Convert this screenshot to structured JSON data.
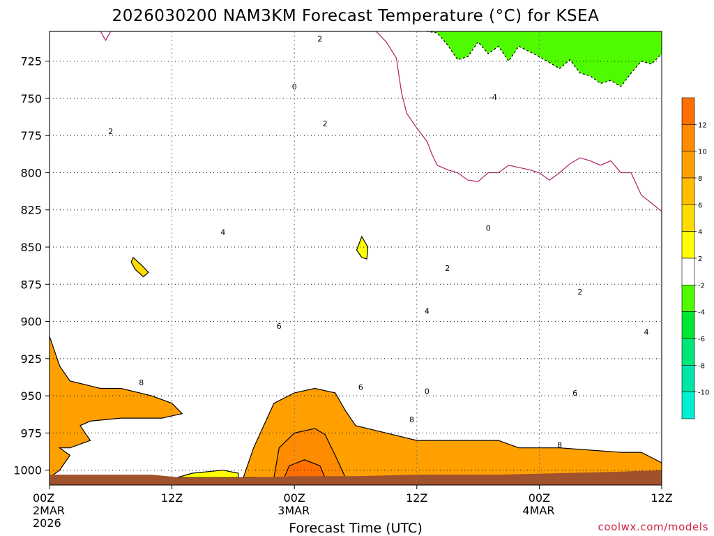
{
  "chart_data": {
    "type": "heatmap",
    "title": "2026030200 NAM3KM Forecast Temperature (°C) for KSEA",
    "xlabel": "Forecast Time (UTC)",
    "ylabel": "Pressure (hPa)",
    "credit": "coolwx.com/models",
    "x_range_hours": [
      0,
      60
    ],
    "y_range_hpa": [
      1010,
      705
    ],
    "y_ticks": [
      "725",
      "750",
      "775",
      "800",
      "825",
      "850",
      "875",
      "900",
      "925",
      "950",
      "975",
      "1000"
    ],
    "y_tick_values": [
      725,
      750,
      775,
      800,
      825,
      850,
      875,
      900,
      925,
      950,
      975,
      1000
    ],
    "x_ticks": [
      {
        "h": 0,
        "line1": "00Z",
        "line2": "2MAR",
        "line3": "2026"
      },
      {
        "h": 12,
        "line1": "12Z",
        "line2": "",
        "line3": ""
      },
      {
        "h": 24,
        "line1": "00Z",
        "line2": "3MAR",
        "line3": ""
      },
      {
        "h": 36,
        "line1": "12Z",
        "line2": "",
        "line3": ""
      },
      {
        "h": 48,
        "line1": "00Z",
        "line2": "4MAR",
        "line3": ""
      },
      {
        "h": 60,
        "line1": "12Z",
        "line2": "",
        "line3": ""
      }
    ],
    "colorbar": {
      "labels": [
        "12",
        "10",
        "8",
        "6",
        "4",
        "2",
        "-2",
        "-4",
        "-6",
        "-8",
        "-10"
      ],
      "bins": [
        {
          "lo": 12,
          "hi": 14,
          "color": "#ff7000"
        },
        {
          "lo": 10,
          "hi": 12,
          "color": "#ff8c00"
        },
        {
          "lo": 8,
          "hi": 10,
          "color": "#ffa000"
        },
        {
          "lo": 6,
          "hi": 8,
          "color": "#ffbe00"
        },
        {
          "lo": 4,
          "hi": 6,
          "color": "#ffdc00"
        },
        {
          "lo": 2,
          "hi": 4,
          "color": "#ffff00"
        },
        {
          "lo": -2,
          "hi": 2,
          "color": "#ffffff"
        },
        {
          "lo": -4,
          "hi": -2,
          "color": "#50fa00"
        },
        {
          "lo": -6,
          "hi": -4,
          "color": "#00e632"
        },
        {
          "lo": -8,
          "hi": -6,
          "color": "#00e678"
        },
        {
          "lo": -10,
          "hi": -8,
          "color": "#00e6a8"
        },
        {
          "lo": -12,
          "hi": -10,
          "color": "#00f0d2"
        }
      ]
    },
    "ground_color": "#a0522d",
    "contour_labels": [
      {
        "text": "2",
        "h": 26.5,
        "p": 710
      },
      {
        "text": "0",
        "h": 24,
        "p": 742
      },
      {
        "text": "-4",
        "h": 43.5,
        "p": 749
      },
      {
        "text": "2",
        "h": 6,
        "p": 772
      },
      {
        "text": "2",
        "h": 27,
        "p": 767
      },
      {
        "text": "4",
        "h": 17,
        "p": 840
      },
      {
        "text": "0",
        "h": 43,
        "p": 837
      },
      {
        "text": "2",
        "h": 39,
        "p": 864
      },
      {
        "text": "2",
        "h": 52,
        "p": 880
      },
      {
        "text": "4",
        "h": 37,
        "p": 893
      },
      {
        "text": "6",
        "h": 22.5,
        "p": 903
      },
      {
        "text": "4",
        "h": 58.5,
        "p": 907
      },
      {
        "text": "8",
        "h": 9,
        "p": 941
      },
      {
        "text": "6",
        "h": 30.5,
        "p": 944
      },
      {
        "text": "6",
        "h": 51.5,
        "p": 948
      },
      {
        "text": "0",
        "h": 37,
        "p": 947
      },
      {
        "text": "8",
        "h": 35.5,
        "p": 966
      },
      {
        "text": "8",
        "h": 50,
        "p": 983
      }
    ],
    "regions": [
      {
        "value": 7,
        "pts": [
          [
            0,
            1005
          ],
          [
            0,
            888
          ],
          [
            4,
            897
          ],
          [
            8,
            900
          ],
          [
            12,
            905
          ],
          [
            16,
            905
          ],
          [
            20,
            898
          ],
          [
            24,
            905
          ],
          [
            28,
            918
          ],
          [
            32,
            927
          ],
          [
            36,
            932
          ],
          [
            40,
            930
          ],
          [
            44,
            925
          ],
          [
            48,
            932
          ],
          [
            52,
            945
          ],
          [
            56,
            944
          ],
          [
            60,
            957
          ],
          [
            60,
            1005
          ]
        ]
      },
      {
        "value": 5,
        "pts": [
          [
            0,
            1005
          ],
          [
            0,
            796
          ],
          [
            3,
            810
          ],
          [
            6,
            822
          ],
          [
            9,
            840
          ],
          [
            12,
            852
          ],
          [
            13,
            826
          ],
          [
            15,
            834
          ],
          [
            17,
            840
          ],
          [
            19,
            830
          ],
          [
            22,
            815
          ],
          [
            23,
            812
          ],
          [
            24,
            822
          ],
          [
            25,
            800
          ],
          [
            26,
            795
          ],
          [
            28,
            812
          ],
          [
            29.5,
            868
          ],
          [
            30.5,
            898
          ],
          [
            32,
            894
          ],
          [
            34,
            898
          ],
          [
            36,
            893
          ],
          [
            38,
            890
          ],
          [
            40,
            888
          ],
          [
            44,
            893
          ],
          [
            48,
            904
          ],
          [
            52,
            908
          ],
          [
            56,
            908
          ],
          [
            60,
            925
          ],
          [
            60,
            1005
          ]
        ]
      },
      {
        "value": 3,
        "pts": [
          [
            0,
            1005
          ],
          [
            0,
            767
          ],
          [
            2,
            779
          ],
          [
            4,
            787
          ],
          [
            5,
            771
          ],
          [
            6,
            772
          ],
          [
            7,
            779
          ],
          [
            9,
            768
          ],
          [
            10,
            762
          ],
          [
            12,
            766
          ],
          [
            14,
            770
          ],
          [
            17,
            772
          ],
          [
            20,
            770
          ],
          [
            23,
            764
          ],
          [
            25,
            768
          ],
          [
            27,
            765
          ],
          [
            29,
            775
          ],
          [
            31,
            790
          ],
          [
            32,
            798
          ],
          [
            33,
            810
          ],
          [
            34,
            848
          ],
          [
            35,
            858
          ],
          [
            36,
            869
          ],
          [
            37,
            864
          ],
          [
            38,
            865
          ],
          [
            39,
            864
          ],
          [
            40,
            875
          ],
          [
            42,
            873
          ],
          [
            44,
            877
          ],
          [
            45,
            883
          ],
          [
            46,
            876
          ],
          [
            48,
            880
          ],
          [
            50,
            878
          ],
          [
            52,
            883
          ],
          [
            55,
            878
          ],
          [
            57,
            886
          ],
          [
            59,
            892
          ],
          [
            60,
            899
          ],
          [
            60,
            1005
          ]
        ]
      },
      {
        "value": 0,
        "pts": [
          [
            0,
            1005
          ],
          [
            0,
            705
          ],
          [
            5,
            705
          ],
          [
            5.5,
            711
          ],
          [
            6,
            705
          ],
          [
            32,
            705
          ],
          [
            33,
            712
          ],
          [
            34,
            723
          ],
          [
            34.5,
            746
          ],
          [
            35,
            760
          ],
          [
            36,
            770
          ],
          [
            37,
            779
          ],
          [
            37.5,
            788
          ],
          [
            38,
            795
          ],
          [
            39,
            798
          ],
          [
            40,
            800
          ],
          [
            41,
            805
          ],
          [
            42,
            806
          ],
          [
            43,
            800
          ],
          [
            44,
            800
          ],
          [
            45,
            795
          ],
          [
            47,
            798
          ],
          [
            48,
            800
          ],
          [
            49,
            805
          ],
          [
            50,
            800
          ],
          [
            51,
            794
          ],
          [
            52,
            790
          ],
          [
            53,
            792
          ],
          [
            54,
            795
          ],
          [
            55,
            792
          ],
          [
            56,
            800
          ],
          [
            57,
            800
          ],
          [
            58,
            815
          ],
          [
            60,
            826
          ],
          [
            60,
            1005
          ]
        ]
      },
      {
        "value": -3,
        "pts": [
          [
            37,
            705
          ],
          [
            60,
            705
          ],
          [
            60,
            720
          ],
          [
            59,
            727
          ],
          [
            58,
            725
          ],
          [
            57,
            733
          ],
          [
            56,
            742
          ],
          [
            55,
            738
          ],
          [
            54,
            740
          ],
          [
            53,
            735
          ],
          [
            52,
            733
          ],
          [
            51,
            724
          ],
          [
            50,
            730
          ],
          [
            48,
            722
          ],
          [
            46,
            715
          ],
          [
            45,
            725
          ],
          [
            44,
            715
          ],
          [
            43,
            720
          ],
          [
            42,
            712
          ],
          [
            41,
            722
          ],
          [
            40,
            724
          ],
          [
            39,
            714
          ],
          [
            38,
            706
          ]
        ]
      },
      {
        "value": 4,
        "pts": [
          [
            8.2,
            857
          ],
          [
            9,
            862
          ],
          [
            9.7,
            867
          ],
          [
            9.2,
            870
          ],
          [
            8.4,
            865
          ],
          [
            8,
            860
          ]
        ]
      },
      {
        "value": 3,
        "pts": [
          [
            30.6,
            843
          ],
          [
            31.2,
            850
          ],
          [
            31.1,
            858
          ],
          [
            30.6,
            857
          ],
          [
            30.1,
            852
          ]
        ]
      },
      {
        "value": 9,
        "pts": [
          [
            0,
            1005
          ],
          [
            0,
            910
          ],
          [
            1,
            930
          ],
          [
            2,
            940
          ],
          [
            5,
            945
          ],
          [
            7,
            945
          ],
          [
            10,
            950
          ],
          [
            12,
            955
          ],
          [
            13,
            962
          ],
          [
            11,
            965
          ],
          [
            9,
            965
          ],
          [
            7,
            965
          ],
          [
            4,
            967
          ],
          [
            3,
            970
          ],
          [
            4,
            980
          ],
          [
            2,
            985
          ],
          [
            1,
            985
          ],
          [
            2,
            990
          ],
          [
            1,
            1000
          ],
          [
            0,
            1005
          ]
        ]
      },
      {
        "value": 9,
        "pts": [
          [
            19,
            1005
          ],
          [
            20,
            985
          ],
          [
            21,
            970
          ],
          [
            22,
            955
          ],
          [
            24,
            948
          ],
          [
            26,
            945
          ],
          [
            28,
            948
          ],
          [
            29,
            960
          ],
          [
            30,
            970
          ],
          [
            33,
            975
          ],
          [
            36,
            980
          ],
          [
            40,
            980
          ],
          [
            44,
            980
          ],
          [
            46,
            985
          ],
          [
            50,
            985
          ],
          [
            54,
            987
          ],
          [
            56,
            988
          ],
          [
            58,
            988
          ],
          [
            60,
            995
          ],
          [
            60,
            1005
          ]
        ]
      },
      {
        "value": 11,
        "pts": [
          [
            22,
            1005
          ],
          [
            22.5,
            985
          ],
          [
            24,
            975
          ],
          [
            26,
            972
          ],
          [
            27,
            976
          ],
          [
            28,
            990
          ],
          [
            29,
            1005
          ]
        ]
      },
      {
        "value": 13,
        "pts": [
          [
            23,
            1005
          ],
          [
            23.5,
            997
          ],
          [
            25,
            993
          ],
          [
            26.5,
            997
          ],
          [
            27,
            1005
          ]
        ]
      },
      {
        "value": 3,
        "pts": [
          [
            12.5,
            1005
          ],
          [
            14,
            1002
          ],
          [
            17,
            1000
          ],
          [
            18.5,
            1002
          ],
          [
            18.5,
            1005
          ]
        ]
      }
    ],
    "ground_top": [
      [
        0,
        1003
      ],
      [
        10,
        1003
      ],
      [
        13,
        1005
      ],
      [
        20,
        1005
      ],
      [
        24,
        1004
      ],
      [
        30,
        1004
      ],
      [
        36,
        1003
      ],
      [
        44,
        1003
      ],
      [
        50,
        1002
      ],
      [
        56,
        1001
      ],
      [
        60,
        1000
      ],
      [
        60,
        1010
      ],
      [
        0,
        1010
      ]
    ]
  }
}
